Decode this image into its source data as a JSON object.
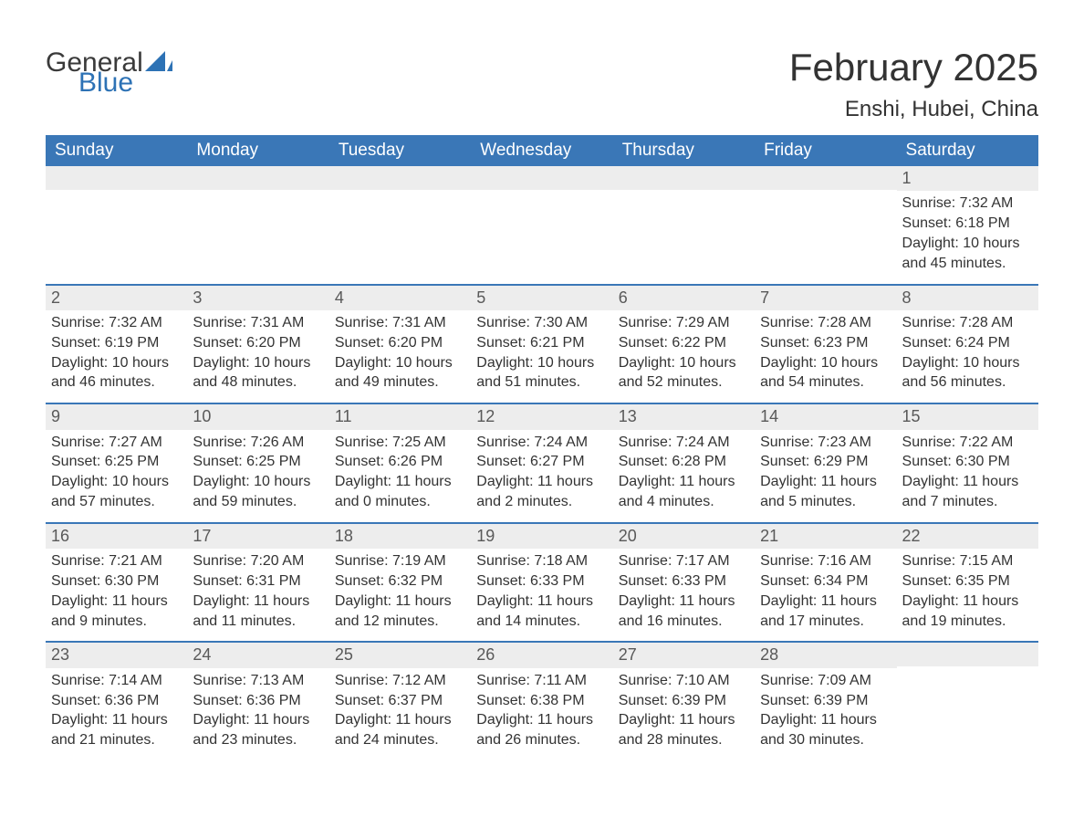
{
  "logo": {
    "text_general": "General",
    "text_blue": "Blue",
    "sail_color": "#2d72b5"
  },
  "title": {
    "month": "February 2025",
    "location": "Enshi, Hubei, China"
  },
  "colors": {
    "header_bg": "#3a77b7",
    "header_text": "#ffffff",
    "daynum_bg": "#ededed",
    "daynum_text": "#595959",
    "body_text": "#333333",
    "row_border": "#3a77b7",
    "page_bg": "#ffffff"
  },
  "day_names": [
    "Sunday",
    "Monday",
    "Tuesday",
    "Wednesday",
    "Thursday",
    "Friday",
    "Saturday"
  ],
  "weeks": [
    [
      null,
      null,
      null,
      null,
      null,
      null,
      {
        "n": "1",
        "sunrise": "Sunrise: 7:32 AM",
        "sunset": "Sunset: 6:18 PM",
        "d1": "Daylight: 10 hours",
        "d2": "and 45 minutes."
      }
    ],
    [
      {
        "n": "2",
        "sunrise": "Sunrise: 7:32 AM",
        "sunset": "Sunset: 6:19 PM",
        "d1": "Daylight: 10 hours",
        "d2": "and 46 minutes."
      },
      {
        "n": "3",
        "sunrise": "Sunrise: 7:31 AM",
        "sunset": "Sunset: 6:20 PM",
        "d1": "Daylight: 10 hours",
        "d2": "and 48 minutes."
      },
      {
        "n": "4",
        "sunrise": "Sunrise: 7:31 AM",
        "sunset": "Sunset: 6:20 PM",
        "d1": "Daylight: 10 hours",
        "d2": "and 49 minutes."
      },
      {
        "n": "5",
        "sunrise": "Sunrise: 7:30 AM",
        "sunset": "Sunset: 6:21 PM",
        "d1": "Daylight: 10 hours",
        "d2": "and 51 minutes."
      },
      {
        "n": "6",
        "sunrise": "Sunrise: 7:29 AM",
        "sunset": "Sunset: 6:22 PM",
        "d1": "Daylight: 10 hours",
        "d2": "and 52 minutes."
      },
      {
        "n": "7",
        "sunrise": "Sunrise: 7:28 AM",
        "sunset": "Sunset: 6:23 PM",
        "d1": "Daylight: 10 hours",
        "d2": "and 54 minutes."
      },
      {
        "n": "8",
        "sunrise": "Sunrise: 7:28 AM",
        "sunset": "Sunset: 6:24 PM",
        "d1": "Daylight: 10 hours",
        "d2": "and 56 minutes."
      }
    ],
    [
      {
        "n": "9",
        "sunrise": "Sunrise: 7:27 AM",
        "sunset": "Sunset: 6:25 PM",
        "d1": "Daylight: 10 hours",
        "d2": "and 57 minutes."
      },
      {
        "n": "10",
        "sunrise": "Sunrise: 7:26 AM",
        "sunset": "Sunset: 6:25 PM",
        "d1": "Daylight: 10 hours",
        "d2": "and 59 minutes."
      },
      {
        "n": "11",
        "sunrise": "Sunrise: 7:25 AM",
        "sunset": "Sunset: 6:26 PM",
        "d1": "Daylight: 11 hours",
        "d2": "and 0 minutes."
      },
      {
        "n": "12",
        "sunrise": "Sunrise: 7:24 AM",
        "sunset": "Sunset: 6:27 PM",
        "d1": "Daylight: 11 hours",
        "d2": "and 2 minutes."
      },
      {
        "n": "13",
        "sunrise": "Sunrise: 7:24 AM",
        "sunset": "Sunset: 6:28 PM",
        "d1": "Daylight: 11 hours",
        "d2": "and 4 minutes."
      },
      {
        "n": "14",
        "sunrise": "Sunrise: 7:23 AM",
        "sunset": "Sunset: 6:29 PM",
        "d1": "Daylight: 11 hours",
        "d2": "and 5 minutes."
      },
      {
        "n": "15",
        "sunrise": "Sunrise: 7:22 AM",
        "sunset": "Sunset: 6:30 PM",
        "d1": "Daylight: 11 hours",
        "d2": "and 7 minutes."
      }
    ],
    [
      {
        "n": "16",
        "sunrise": "Sunrise: 7:21 AM",
        "sunset": "Sunset: 6:30 PM",
        "d1": "Daylight: 11 hours",
        "d2": "and 9 minutes."
      },
      {
        "n": "17",
        "sunrise": "Sunrise: 7:20 AM",
        "sunset": "Sunset: 6:31 PM",
        "d1": "Daylight: 11 hours",
        "d2": "and 11 minutes."
      },
      {
        "n": "18",
        "sunrise": "Sunrise: 7:19 AM",
        "sunset": "Sunset: 6:32 PM",
        "d1": "Daylight: 11 hours",
        "d2": "and 12 minutes."
      },
      {
        "n": "19",
        "sunrise": "Sunrise: 7:18 AM",
        "sunset": "Sunset: 6:33 PM",
        "d1": "Daylight: 11 hours",
        "d2": "and 14 minutes."
      },
      {
        "n": "20",
        "sunrise": "Sunrise: 7:17 AM",
        "sunset": "Sunset: 6:33 PM",
        "d1": "Daylight: 11 hours",
        "d2": "and 16 minutes."
      },
      {
        "n": "21",
        "sunrise": "Sunrise: 7:16 AM",
        "sunset": "Sunset: 6:34 PM",
        "d1": "Daylight: 11 hours",
        "d2": "and 17 minutes."
      },
      {
        "n": "22",
        "sunrise": "Sunrise: 7:15 AM",
        "sunset": "Sunset: 6:35 PM",
        "d1": "Daylight: 11 hours",
        "d2": "and 19 minutes."
      }
    ],
    [
      {
        "n": "23",
        "sunrise": "Sunrise: 7:14 AM",
        "sunset": "Sunset: 6:36 PM",
        "d1": "Daylight: 11 hours",
        "d2": "and 21 minutes."
      },
      {
        "n": "24",
        "sunrise": "Sunrise: 7:13 AM",
        "sunset": "Sunset: 6:36 PM",
        "d1": "Daylight: 11 hours",
        "d2": "and 23 minutes."
      },
      {
        "n": "25",
        "sunrise": "Sunrise: 7:12 AM",
        "sunset": "Sunset: 6:37 PM",
        "d1": "Daylight: 11 hours",
        "d2": "and 24 minutes."
      },
      {
        "n": "26",
        "sunrise": "Sunrise: 7:11 AM",
        "sunset": "Sunset: 6:38 PM",
        "d1": "Daylight: 11 hours",
        "d2": "and 26 minutes."
      },
      {
        "n": "27",
        "sunrise": "Sunrise: 7:10 AM",
        "sunset": "Sunset: 6:39 PM",
        "d1": "Daylight: 11 hours",
        "d2": "and 28 minutes."
      },
      {
        "n": "28",
        "sunrise": "Sunrise: 7:09 AM",
        "sunset": "Sunset: 6:39 PM",
        "d1": "Daylight: 11 hours",
        "d2": "and 30 minutes."
      },
      null
    ]
  ]
}
